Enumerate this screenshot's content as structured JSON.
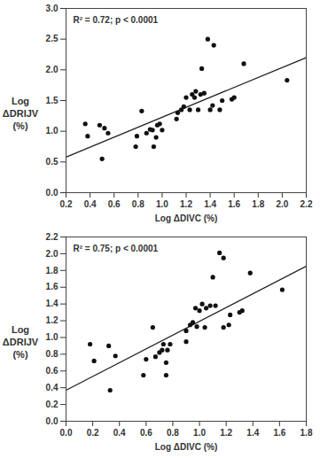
{
  "chart_data": [
    {
      "type": "scatter",
      "annotation": "R² = 0.72; p < 0.0001",
      "x_label": "Log ΔDIVC (%)",
      "y_label": "Log ΔDRIJV (%)",
      "color": "#111111",
      "marker": "circle",
      "x": [
        0.36,
        0.38,
        0.48,
        0.5,
        0.52,
        0.55,
        0.78,
        0.79,
        0.83,
        0.87,
        0.9,
        0.92,
        0.93,
        0.95,
        0.96,
        0.98,
        1.0,
        1.12,
        1.13,
        1.16,
        1.18,
        1.2,
        1.23,
        1.25,
        1.27,
        1.28,
        1.3,
        1.32,
        1.33,
        1.35,
        1.38,
        1.4,
        1.42,
        1.43,
        1.48,
        1.5,
        1.58,
        1.6,
        1.68,
        2.04
      ],
      "values": [
        1.12,
        0.92,
        1.1,
        0.55,
        1.05,
        0.97,
        0.75,
        0.92,
        1.33,
        0.97,
        1.03,
        1.02,
        0.75,
        0.9,
        1.1,
        1.12,
        1.02,
        1.2,
        1.3,
        1.35,
        1.4,
        1.55,
        1.35,
        1.6,
        1.55,
        1.65,
        1.35,
        1.6,
        2.02,
        1.62,
        2.5,
        1.35,
        1.42,
        2.4,
        1.35,
        1.5,
        1.52,
        1.55,
        2.1,
        1.83
      ],
      "trendline": {
        "x": [
          0.2,
          2.2
        ],
        "values": [
          0.58,
          2.2
        ]
      },
      "xlim": [
        0.2,
        2.2
      ],
      "xticks": [
        0.2,
        0.4,
        0.6,
        0.8,
        {
          "value": 1,
          "label": "1.0"
        },
        1.2,
        1.4,
        1.6,
        1.8,
        {
          "value": 2,
          "label": "2.0"
        },
        2.2
      ],
      "ylim": [
        0,
        3
      ],
      "yticks": [
        {
          "value": 0,
          "label": "0.0"
        },
        0.5,
        {
          "value": 1,
          "label": "1.0"
        },
        1.5,
        {
          "value": 2,
          "label": "2.0"
        },
        2.5,
        {
          "value": 3,
          "label": "3.0"
        }
      ],
      "grid": false
    },
    {
      "type": "scatter",
      "annotation": "R² = 0.75; p < 0.0001",
      "x_label": "Log ΔDIVC (%)",
      "y_label": "Log ΔDRIJV (%)",
      "color": "#111111",
      "marker": "circle",
      "x": [
        0.18,
        0.21,
        0.32,
        0.33,
        0.37,
        0.58,
        0.6,
        0.65,
        0.67,
        0.7,
        0.72,
        0.73,
        0.75,
        0.75,
        0.76,
        0.78,
        0.9,
        0.9,
        0.93,
        0.95,
        0.97,
        0.98,
        1.0,
        1.02,
        1.04,
        1.05,
        1.08,
        1.1,
        1.12,
        1.15,
        1.18,
        1.18,
        1.22,
        1.23,
        1.3,
        1.32,
        1.38,
        1.62
      ],
      "values": [
        0.92,
        0.72,
        0.9,
        0.37,
        0.78,
        0.55,
        0.74,
        1.12,
        0.77,
        0.82,
        0.85,
        0.92,
        0.7,
        0.55,
        0.85,
        0.92,
        0.95,
        1.08,
        1.15,
        1.18,
        1.35,
        1.13,
        1.32,
        1.4,
        1.12,
        1.35,
        1.38,
        1.72,
        1.38,
        2.01,
        1.95,
        1.12,
        1.15,
        1.27,
        1.3,
        1.32,
        1.77,
        1.57
      ],
      "trendline": {
        "x": [
          0,
          1.8
        ],
        "values": [
          0.37,
          1.85
        ]
      },
      "xlim": [
        0,
        1.8
      ],
      "xticks": [
        {
          "value": 0,
          "label": "0.0"
        },
        0.2,
        0.4,
        0.6,
        0.8,
        {
          "value": 1,
          "label": "1.0"
        },
        1.2,
        1.4,
        1.6,
        1.8
      ],
      "ylim": [
        0,
        2.2
      ],
      "yticks": [
        {
          "value": 0,
          "label": "0.0"
        },
        0.2,
        0.4,
        0.6,
        0.8,
        {
          "value": 1,
          "label": "1.0"
        },
        1.2,
        1.4,
        1.6,
        1.8,
        {
          "value": 2,
          "label": "2.0"
        },
        2.2
      ],
      "grid": false
    }
  ]
}
